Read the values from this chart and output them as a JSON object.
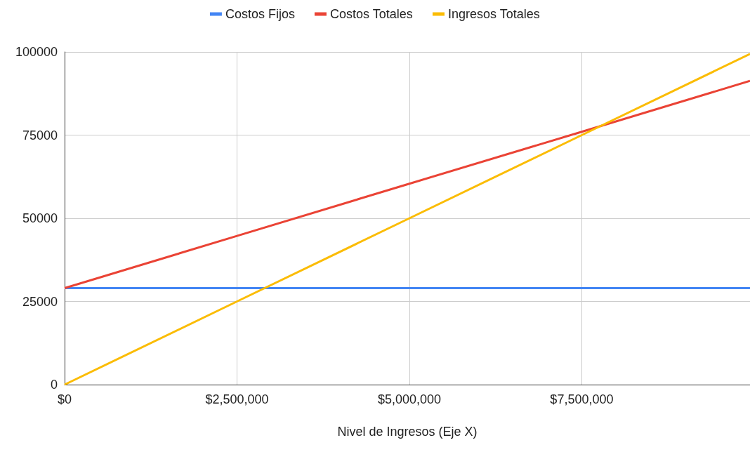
{
  "chart_data": {
    "type": "line",
    "xlabel": "Nivel de Ingresos (Eje X)",
    "x": [
      0,
      2500000,
      5000000,
      7500000,
      9940000
    ],
    "series": [
      {
        "name": "Costos Fijos",
        "color": "#4285f4",
        "values": [
          29000,
          29000,
          29000,
          29000,
          29000
        ]
      },
      {
        "name": "Costos Totales",
        "color": "#ea4335",
        "values": [
          29000,
          44700,
          60400,
          76000,
          91300
        ]
      },
      {
        "name": "Ingresos Totales",
        "color": "#fbbc04",
        "values": [
          0,
          25000,
          50000,
          75000,
          99400
        ]
      }
    ],
    "xlim": [
      0,
      9940000
    ],
    "xticks": [
      {
        "value": 0,
        "label": "$0"
      },
      {
        "value": 2500000,
        "label": "$2,500,000"
      },
      {
        "value": 5000000,
        "label": "$5,000,000"
      },
      {
        "value": 7500000,
        "label": "$7,500,000"
      }
    ],
    "ylim": [
      0,
      100000
    ],
    "yticks": [
      0,
      25000,
      50000,
      75000,
      100000
    ],
    "grid": true,
    "legend": "top",
    "marker": "none",
    "line_style": "solid"
  }
}
